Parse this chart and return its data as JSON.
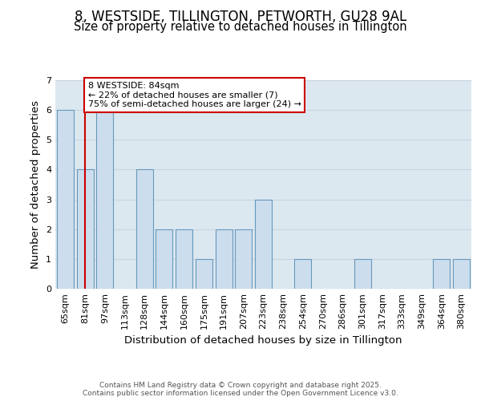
{
  "title": "8, WESTSIDE, TILLINGTON, PETWORTH, GU28 9AL",
  "subtitle": "Size of property relative to detached houses in Tillington",
  "xlabel": "Distribution of detached houses by size in Tillington",
  "ylabel": "Number of detached properties",
  "bins": [
    "65sqm",
    "81sqm",
    "97sqm",
    "113sqm",
    "128sqm",
    "144sqm",
    "160sqm",
    "175sqm",
    "191sqm",
    "207sqm",
    "223sqm",
    "238sqm",
    "254sqm",
    "270sqm",
    "286sqm",
    "301sqm",
    "317sqm",
    "333sqm",
    "349sqm",
    "364sqm",
    "380sqm"
  ],
  "values": [
    6,
    4,
    6,
    0,
    4,
    2,
    2,
    1,
    2,
    2,
    3,
    0,
    1,
    0,
    0,
    1,
    0,
    0,
    0,
    1,
    1
  ],
  "bar_color": "#ccdded",
  "bar_edge_color": "#6699bb",
  "red_line_index": 1,
  "ylim": [
    0,
    7
  ],
  "yticks": [
    0,
    1,
    2,
    3,
    4,
    5,
    6,
    7
  ],
  "annotation_text": "8 WESTSIDE: 84sqm\n← 22% of detached houses are smaller (7)\n75% of semi-detached houses are larger (24) →",
  "annotation_box_color": "#ffffff",
  "annotation_box_edgecolor": "#cc0000",
  "grid_color": "#c8d4e0",
  "background_color": "#dce8f0",
  "footer_text": "Contains HM Land Registry data © Crown copyright and database right 2025.\nContains public sector information licensed under the Open Government Licence v3.0.",
  "title_fontsize": 12,
  "subtitle_fontsize": 10.5,
  "axis_fontsize": 9.5,
  "tick_fontsize": 8
}
